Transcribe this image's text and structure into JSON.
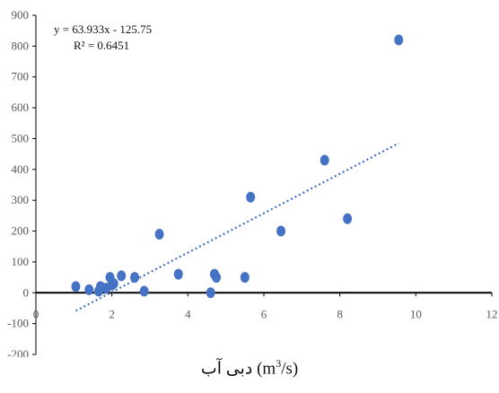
{
  "chart_data": {
    "type": "scatter",
    "title": "",
    "xlabel": "دبی آب (m3/s)",
    "ylabel": "",
    "xlim": [
      0,
      12
    ],
    "ylim": [
      -200,
      900
    ],
    "x_ticks": [
      0,
      2,
      4,
      6,
      8,
      10,
      12
    ],
    "y_ticks": [
      -200,
      -100,
      0,
      100,
      200,
      300,
      400,
      500,
      600,
      700,
      800,
      900
    ],
    "grid": false,
    "legend": "none",
    "colors": {
      "marker": "#4472C4",
      "trendline": "#4472C4",
      "axis": "#000000"
    },
    "series": [
      {
        "points": [
          {
            "x": 1.05,
            "y": 20
          },
          {
            "x": 1.4,
            "y": 10
          },
          {
            "x": 1.65,
            "y": 5
          },
          {
            "x": 1.7,
            "y": 20
          },
          {
            "x": 1.85,
            "y": 15
          },
          {
            "x": 1.95,
            "y": 50
          },
          {
            "x": 2.0,
            "y": 25
          },
          {
            "x": 2.05,
            "y": 30
          },
          {
            "x": 2.25,
            "y": 55
          },
          {
            "x": 2.6,
            "y": 50
          },
          {
            "x": 2.85,
            "y": 5
          },
          {
            "x": 3.25,
            "y": 190
          },
          {
            "x": 3.75,
            "y": 60
          },
          {
            "x": 4.6,
            "y": 0
          },
          {
            "x": 4.7,
            "y": 60
          },
          {
            "x": 4.75,
            "y": 50
          },
          {
            "x": 5.5,
            "y": 50
          },
          {
            "x": 5.65,
            "y": 310
          },
          {
            "x": 6.45,
            "y": 200
          },
          {
            "x": 7.6,
            "y": 430
          },
          {
            "x": 8.2,
            "y": 240
          },
          {
            "x": 9.55,
            "y": 820
          }
        ]
      }
    ],
    "trendline": {
      "type": "linear",
      "slope": 63.933,
      "intercept": -125.75,
      "x_range": [
        1.05,
        9.55
      ],
      "equation_text": "y = 63.933x - 125.75",
      "r2_text": "R² = 0.6451"
    }
  }
}
